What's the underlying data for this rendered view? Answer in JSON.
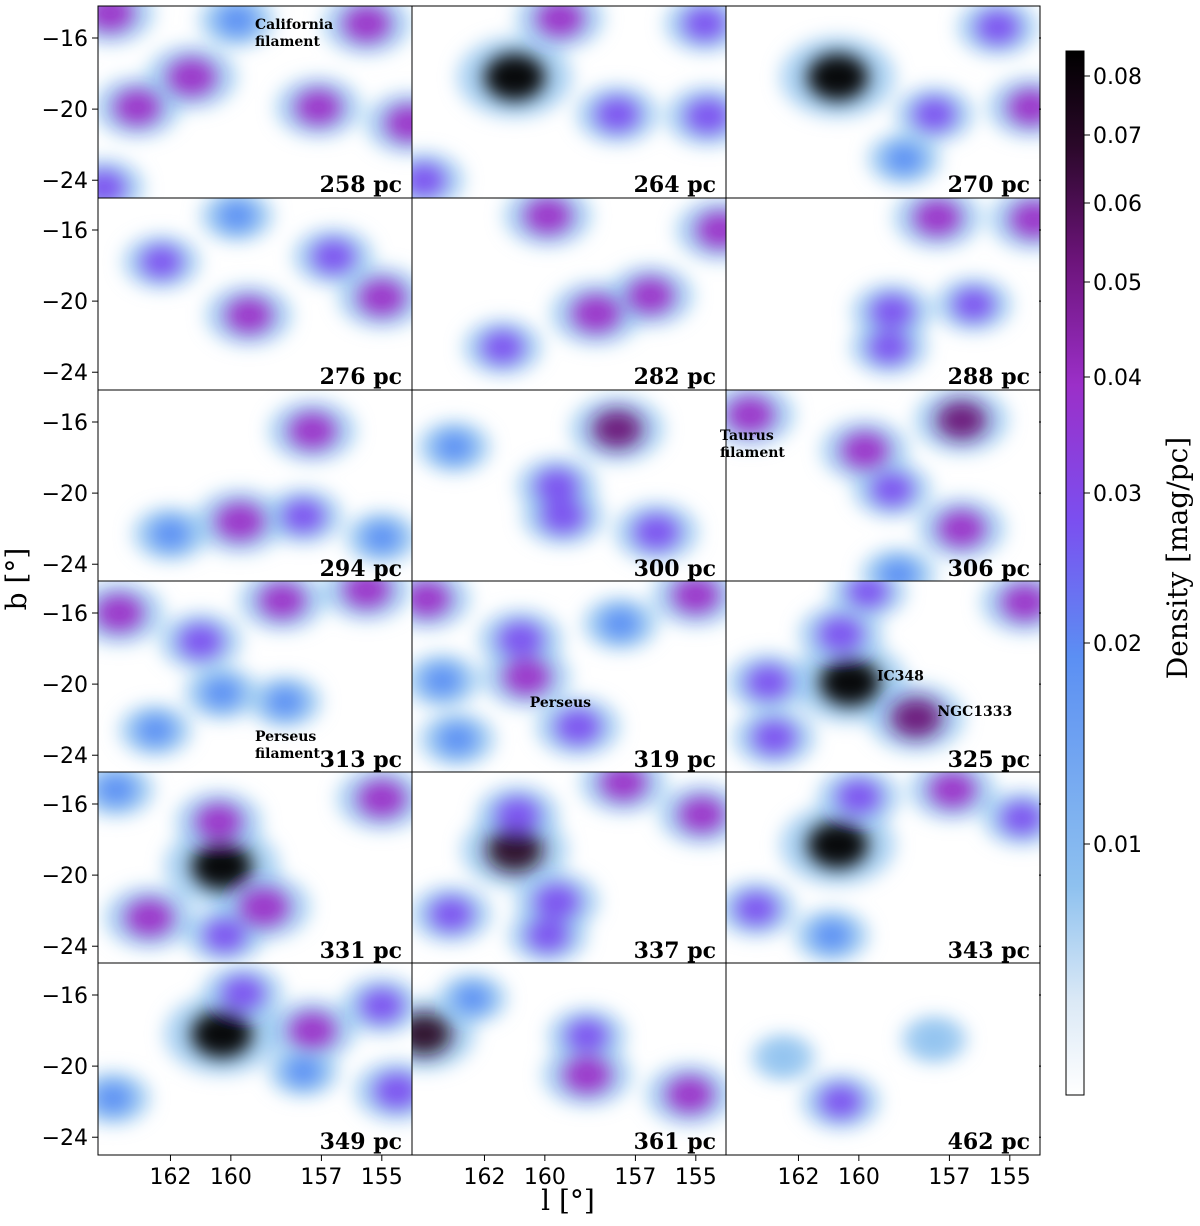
{
  "chart_data": {
    "type": "heatmap",
    "xlabel": "l [°]",
    "ylabel": "b [°]",
    "x_ticks": [
      162,
      160,
      157,
      155
    ],
    "y_ticks": [
      -16,
      -20,
      -24
    ],
    "xlim": [
      164.4,
      154.0
    ],
    "ylim": [
      -25.0,
      -14.2
    ],
    "colorbar": {
      "label": "Density [mag/pc]",
      "ticks": [
        "0.01",
        "0.02",
        "0.03",
        "0.04",
        "0.05",
        "0.06",
        "0.07",
        "0.08"
      ],
      "scale": "nonlinear",
      "range": [
        0.0,
        0.083
      ],
      "colors": [
        "#ffffff",
        "#dbe9f6",
        "#8ec1ef",
        "#5b8ff3",
        "#7b4ff0",
        "#9b2fc8",
        "#6c147a",
        "#2a0829",
        "#000000"
      ]
    },
    "panels": [
      {
        "label": "258 pc",
        "annotations": [
          {
            "text": "California\nfilament",
            "l": 159.2,
            "b": -15.5
          }
        ],
        "features": [
          {
            "l": 161.3,
            "b": -18.2,
            "v": 0.035
          },
          {
            "l": 163.1,
            "b": -19.9,
            "v": 0.028
          },
          {
            "l": 157.1,
            "b": -19.9,
            "v": 0.027
          },
          {
            "l": 154.1,
            "b": -20.8,
            "v": 0.03
          },
          {
            "l": 164.2,
            "b": -24.4,
            "v": 0.02
          },
          {
            "l": 159.8,
            "b": -15.0,
            "v": 0.015
          },
          {
            "l": 155.5,
            "b": -15.2,
            "v": 0.03
          },
          {
            "l": 164.0,
            "b": -14.6,
            "v": 0.03
          }
        ]
      },
      {
        "label": "264 pc",
        "annotations": [],
        "features": [
          {
            "l": 161.0,
            "b": -18.2,
            "v": 0.085
          },
          {
            "l": 157.6,
            "b": -20.3,
            "v": 0.022
          },
          {
            "l": 154.6,
            "b": -20.4,
            "v": 0.025
          },
          {
            "l": 159.5,
            "b": -14.9,
            "v": 0.03
          },
          {
            "l": 154.7,
            "b": -15.2,
            "v": 0.02
          },
          {
            "l": 164.0,
            "b": -24.0,
            "v": 0.02
          }
        ]
      },
      {
        "label": "270 pc",
        "annotations": [],
        "features": [
          {
            "l": 160.7,
            "b": -18.2,
            "v": 0.085
          },
          {
            "l": 157.5,
            "b": -20.3,
            "v": 0.018
          },
          {
            "l": 154.3,
            "b": -19.9,
            "v": 0.028
          },
          {
            "l": 155.4,
            "b": -15.4,
            "v": 0.02
          },
          {
            "l": 158.5,
            "b": -22.8,
            "v": 0.012
          }
        ]
      },
      {
        "label": "276 pc",
        "annotations": [],
        "features": [
          {
            "l": 162.3,
            "b": -17.8,
            "v": 0.016
          },
          {
            "l": 159.4,
            "b": -20.8,
            "v": 0.028
          },
          {
            "l": 156.6,
            "b": -17.5,
            "v": 0.02
          },
          {
            "l": 155.0,
            "b": -19.8,
            "v": 0.03
          },
          {
            "l": 159.8,
            "b": -15.2,
            "v": 0.012
          }
        ]
      },
      {
        "label": "282 pc",
        "annotations": [],
        "features": [
          {
            "l": 159.9,
            "b": -15.2,
            "v": 0.03
          },
          {
            "l": 158.3,
            "b": -20.7,
            "v": 0.035
          },
          {
            "l": 156.5,
            "b": -19.7,
            "v": 0.028
          },
          {
            "l": 154.2,
            "b": -16.0,
            "v": 0.03
          },
          {
            "l": 161.4,
            "b": -22.6,
            "v": 0.018
          }
        ]
      },
      {
        "label": "288 pc",
        "annotations": [],
        "features": [
          {
            "l": 157.4,
            "b": -15.3,
            "v": 0.03
          },
          {
            "l": 154.2,
            "b": -15.4,
            "v": 0.032
          },
          {
            "l": 158.9,
            "b": -20.6,
            "v": 0.02
          },
          {
            "l": 156.2,
            "b": -20.2,
            "v": 0.016
          },
          {
            "l": 159.0,
            "b": -22.6,
            "v": 0.016
          }
        ]
      },
      {
        "label": "294 pc",
        "annotations": [],
        "features": [
          {
            "l": 157.3,
            "b": -16.5,
            "v": 0.03
          },
          {
            "l": 159.7,
            "b": -21.6,
            "v": 0.035
          },
          {
            "l": 157.6,
            "b": -21.3,
            "v": 0.018
          },
          {
            "l": 162.0,
            "b": -22.3,
            "v": 0.015
          },
          {
            "l": 155.0,
            "b": -22.5,
            "v": 0.012
          }
        ]
      },
      {
        "label": "300 pc",
        "annotations": [],
        "features": [
          {
            "l": 157.6,
            "b": -16.4,
            "v": 0.04
          },
          {
            "l": 159.6,
            "b": -19.6,
            "v": 0.02
          },
          {
            "l": 159.4,
            "b": -21.3,
            "v": 0.022
          },
          {
            "l": 156.3,
            "b": -22.2,
            "v": 0.025
          },
          {
            "l": 163.0,
            "b": -17.4,
            "v": 0.012
          }
        ]
      },
      {
        "label": "306 pc",
        "annotations": [
          {
            "text": "Taurus\nfilament",
            "l": 164.6,
            "b": -17.0
          }
        ],
        "features": [
          {
            "l": 163.6,
            "b": -15.6,
            "v": 0.032
          },
          {
            "l": 159.8,
            "b": -17.6,
            "v": 0.03
          },
          {
            "l": 156.6,
            "b": -15.9,
            "v": 0.04
          },
          {
            "l": 158.9,
            "b": -19.8,
            "v": 0.018
          },
          {
            "l": 156.6,
            "b": -22.0,
            "v": 0.03
          },
          {
            "l": 158.7,
            "b": -24.6,
            "v": 0.014
          }
        ]
      },
      {
        "label": "313 pc",
        "annotations": [
          {
            "text": "Perseus\nfilament",
            "l": 159.2,
            "b": -23.2
          }
        ],
        "features": [
          {
            "l": 163.7,
            "b": -16.0,
            "v": 0.033
          },
          {
            "l": 161.0,
            "b": -17.6,
            "v": 0.022
          },
          {
            "l": 158.3,
            "b": -15.3,
            "v": 0.028
          },
          {
            "l": 155.5,
            "b": -14.7,
            "v": 0.03
          },
          {
            "l": 160.3,
            "b": -20.5,
            "v": 0.014
          },
          {
            "l": 158.2,
            "b": -21.0,
            "v": 0.012
          },
          {
            "l": 162.5,
            "b": -22.6,
            "v": 0.012
          }
        ]
      },
      {
        "label": "319 pc",
        "annotations": [
          {
            "text": "Perseus",
            "l": 160.5,
            "b": -21.3
          }
        ],
        "features": [
          {
            "l": 163.9,
            "b": -15.2,
            "v": 0.028
          },
          {
            "l": 160.8,
            "b": -17.5,
            "v": 0.025
          },
          {
            "l": 160.6,
            "b": -19.6,
            "v": 0.03
          },
          {
            "l": 158.9,
            "b": -22.4,
            "v": 0.025
          },
          {
            "l": 163.4,
            "b": -19.8,
            "v": 0.015
          },
          {
            "l": 162.9,
            "b": -23.1,
            "v": 0.015
          },
          {
            "l": 157.5,
            "b": -16.6,
            "v": 0.014
          },
          {
            "l": 155.0,
            "b": -15.0,
            "v": 0.03
          }
        ]
      },
      {
        "label": "325 pc",
        "annotations": [
          {
            "text": "IC348",
            "l": 159.4,
            "b": -19.8
          },
          {
            "text": "NGC1333",
            "l": 157.4,
            "b": -21.8
          }
        ],
        "features": [
          {
            "l": 160.3,
            "b": -19.9,
            "v": 0.085
          },
          {
            "l": 160.6,
            "b": -17.2,
            "v": 0.025
          },
          {
            "l": 158.1,
            "b": -21.9,
            "v": 0.045
          },
          {
            "l": 163.0,
            "b": -19.9,
            "v": 0.022
          },
          {
            "l": 162.8,
            "b": -23.0,
            "v": 0.022
          },
          {
            "l": 154.5,
            "b": -15.4,
            "v": 0.03
          },
          {
            "l": 159.7,
            "b": -14.8,
            "v": 0.016
          }
        ]
      },
      {
        "label": "331 pc",
        "annotations": [],
        "features": [
          {
            "l": 160.3,
            "b": -19.5,
            "v": 0.085
          },
          {
            "l": 160.4,
            "b": -17.0,
            "v": 0.028
          },
          {
            "l": 158.9,
            "b": -21.8,
            "v": 0.038
          },
          {
            "l": 162.7,
            "b": -22.4,
            "v": 0.032
          },
          {
            "l": 160.2,
            "b": -23.4,
            "v": 0.018
          },
          {
            "l": 155.0,
            "b": -15.7,
            "v": 0.033
          },
          {
            "l": 163.8,
            "b": -15.2,
            "v": 0.015
          }
        ]
      },
      {
        "label": "337 pc",
        "annotations": [],
        "features": [
          {
            "l": 161.0,
            "b": -18.6,
            "v": 0.065
          },
          {
            "l": 160.9,
            "b": -16.6,
            "v": 0.022
          },
          {
            "l": 159.6,
            "b": -21.5,
            "v": 0.025
          },
          {
            "l": 163.1,
            "b": -22.2,
            "v": 0.02
          },
          {
            "l": 159.9,
            "b": -23.4,
            "v": 0.018
          },
          {
            "l": 157.4,
            "b": -14.8,
            "v": 0.028
          },
          {
            "l": 154.8,
            "b": -16.6,
            "v": 0.028
          }
        ]
      },
      {
        "label": "343 pc",
        "annotations": [],
        "features": [
          {
            "l": 160.7,
            "b": -18.3,
            "v": 0.085
          },
          {
            "l": 160.0,
            "b": -15.6,
            "v": 0.022
          },
          {
            "l": 156.9,
            "b": -15.2,
            "v": 0.028
          },
          {
            "l": 154.6,
            "b": -16.8,
            "v": 0.018
          },
          {
            "l": 163.4,
            "b": -21.9,
            "v": 0.018
          },
          {
            "l": 160.9,
            "b": -23.4,
            "v": 0.014
          }
        ]
      },
      {
        "label": "349 pc",
        "annotations": [],
        "features": [
          {
            "l": 160.3,
            "b": -18.2,
            "v": 0.085
          },
          {
            "l": 159.6,
            "b": -15.9,
            "v": 0.02
          },
          {
            "l": 157.3,
            "b": -18.0,
            "v": 0.03
          },
          {
            "l": 155.0,
            "b": -16.6,
            "v": 0.02
          },
          {
            "l": 154.5,
            "b": -21.4,
            "v": 0.026
          },
          {
            "l": 163.9,
            "b": -21.8,
            "v": 0.014
          },
          {
            "l": 157.6,
            "b": -20.3,
            "v": 0.01
          }
        ]
      },
      {
        "label": "361 pc",
        "annotations": [],
        "features": [
          {
            "l": 164.0,
            "b": -18.2,
            "v": 0.055
          },
          {
            "l": 158.6,
            "b": -20.5,
            "v": 0.032
          },
          {
            "l": 158.6,
            "b": -18.3,
            "v": 0.018
          },
          {
            "l": 155.2,
            "b": -21.6,
            "v": 0.03
          },
          {
            "l": 162.4,
            "b": -16.2,
            "v": 0.009
          }
        ]
      },
      {
        "label": "462 pc",
        "annotations": [],
        "features": [
          {
            "l": 160.6,
            "b": -22.0,
            "v": 0.018
          },
          {
            "l": 157.5,
            "b": -18.5,
            "v": 0.006
          },
          {
            "l": 162.5,
            "b": -19.5,
            "v": 0.005
          }
        ]
      }
    ]
  }
}
